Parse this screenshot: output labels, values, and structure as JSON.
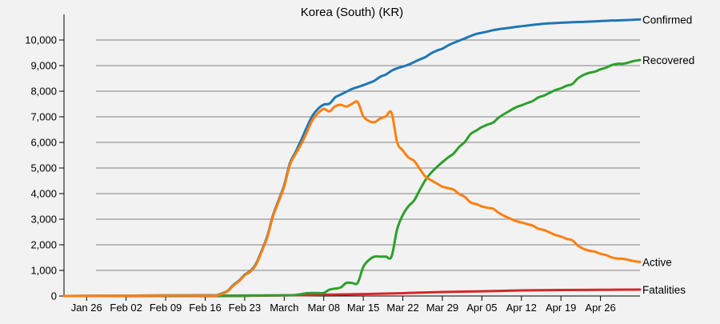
{
  "chart_data": {
    "type": "line",
    "title": "Korea (South) (KR)",
    "xlabel": "",
    "ylabel": "",
    "ylim": [
      0,
      11000
    ],
    "yticks": [
      0,
      1000,
      2000,
      3000,
      4000,
      5000,
      6000,
      7000,
      8000,
      9000,
      10000
    ],
    "ytick_labels": [
      "0",
      "1,000",
      "2,000",
      "3,000",
      "4,000",
      "5,000",
      "6,000",
      "7,000",
      "8,000",
      "9,000",
      "10,000"
    ],
    "grid": "horizontal",
    "x_start": "2020-01-22",
    "x_end": "2020-05-03",
    "xticks": [
      "2020-01-26",
      "2020-02-02",
      "2020-02-09",
      "2020-02-16",
      "2020-02-23",
      "2020-03-01",
      "2020-03-08",
      "2020-03-15",
      "2020-03-22",
      "2020-03-29",
      "2020-04-05",
      "2020-04-12",
      "2020-04-19",
      "2020-04-26"
    ],
    "xtick_labels": [
      "Jan 26",
      "Feb 02",
      "Feb 09",
      "Feb 16",
      "Feb 23",
      "March",
      "Mar 08",
      "Mar 15",
      "Mar 22",
      "Mar 29",
      "Apr 05",
      "Apr 12",
      "Apr 19",
      "Apr 26"
    ],
    "series": [
      {
        "name": "Confirmed",
        "color": "#1f77b4",
        "points": [
          [
            "2020-01-22",
            1
          ],
          [
            "2020-02-01",
            12
          ],
          [
            "2020-02-10",
            27
          ],
          [
            "2020-02-17",
            30
          ],
          [
            "2020-02-18",
            31
          ],
          [
            "2020-02-19",
            104
          ],
          [
            "2020-02-20",
            204
          ],
          [
            "2020-02-21",
            433
          ],
          [
            "2020-02-22",
            602
          ],
          [
            "2020-02-23",
            833
          ],
          [
            "2020-02-24",
            977
          ],
          [
            "2020-02-25",
            1261
          ],
          [
            "2020-02-26",
            1766
          ],
          [
            "2020-02-27",
            2337
          ],
          [
            "2020-02-28",
            3150
          ],
          [
            "2020-02-29",
            3736
          ],
          [
            "2020-03-01",
            4335
          ],
          [
            "2020-03-02",
            5186
          ],
          [
            "2020-03-03",
            5621
          ],
          [
            "2020-03-04",
            6088
          ],
          [
            "2020-03-05",
            6593
          ],
          [
            "2020-03-06",
            7041
          ],
          [
            "2020-03-07",
            7314
          ],
          [
            "2020-03-08",
            7478
          ],
          [
            "2020-03-09",
            7513
          ],
          [
            "2020-03-10",
            7755
          ],
          [
            "2020-03-11",
            7869
          ],
          [
            "2020-03-12",
            7979
          ],
          [
            "2020-03-13",
            8086
          ],
          [
            "2020-03-14",
            8162
          ],
          [
            "2020-03-15",
            8236
          ],
          [
            "2020-03-16",
            8320
          ],
          [
            "2020-03-17",
            8413
          ],
          [
            "2020-03-18",
            8565
          ],
          [
            "2020-03-19",
            8652
          ],
          [
            "2020-03-20",
            8799
          ],
          [
            "2020-03-21",
            8897
          ],
          [
            "2020-03-22",
            8961
          ],
          [
            "2020-03-23",
            9037
          ],
          [
            "2020-03-24",
            9137
          ],
          [
            "2020-03-25",
            9241
          ],
          [
            "2020-03-26",
            9332
          ],
          [
            "2020-03-27",
            9478
          ],
          [
            "2020-03-28",
            9583
          ],
          [
            "2020-03-29",
            9661
          ],
          [
            "2020-03-30",
            9786
          ],
          [
            "2020-03-31",
            9887
          ],
          [
            "2020-04-01",
            9976
          ],
          [
            "2020-04-02",
            10062
          ],
          [
            "2020-04-03",
            10156
          ],
          [
            "2020-04-04",
            10237
          ],
          [
            "2020-04-05",
            10284
          ],
          [
            "2020-04-06",
            10331
          ],
          [
            "2020-04-07",
            10384
          ],
          [
            "2020-04-08",
            10423
          ],
          [
            "2020-04-09",
            10450
          ],
          [
            "2020-04-10",
            10480
          ],
          [
            "2020-04-11",
            10512
          ],
          [
            "2020-04-12",
            10537
          ],
          [
            "2020-04-13",
            10564
          ],
          [
            "2020-04-14",
            10591
          ],
          [
            "2020-04-15",
            10613
          ],
          [
            "2020-04-16",
            10635
          ],
          [
            "2020-04-17",
            10653
          ],
          [
            "2020-04-18",
            10661
          ],
          [
            "2020-04-19",
            10674
          ],
          [
            "2020-04-20",
            10683
          ],
          [
            "2020-04-21",
            10694
          ],
          [
            "2020-04-22",
            10702
          ],
          [
            "2020-04-23",
            10708
          ],
          [
            "2020-04-24",
            10718
          ],
          [
            "2020-04-25",
            10728
          ],
          [
            "2020-04-26",
            10738
          ],
          [
            "2020-04-27",
            10752
          ],
          [
            "2020-04-28",
            10761
          ],
          [
            "2020-04-29",
            10765
          ],
          [
            "2020-04-30",
            10774
          ],
          [
            "2020-05-01",
            10780
          ],
          [
            "2020-05-02",
            10793
          ],
          [
            "2020-05-03",
            10801
          ]
        ]
      },
      {
        "name": "Recovered",
        "color": "#2ca02c",
        "points": [
          [
            "2020-01-22",
            0
          ],
          [
            "2020-02-20",
            16
          ],
          [
            "2020-03-01",
            30
          ],
          [
            "2020-03-03",
            41
          ],
          [
            "2020-03-05",
            108
          ],
          [
            "2020-03-06",
            118
          ],
          [
            "2020-03-07",
            118
          ],
          [
            "2020-03-08",
            118
          ],
          [
            "2020-03-09",
            247
          ],
          [
            "2020-03-10",
            288
          ],
          [
            "2020-03-11",
            333
          ],
          [
            "2020-03-12",
            510
          ],
          [
            "2020-03-13",
            510
          ],
          [
            "2020-03-14",
            510
          ],
          [
            "2020-03-15",
            1137
          ],
          [
            "2020-03-16",
            1407
          ],
          [
            "2020-03-17",
            1540
          ],
          [
            "2020-03-18",
            1540
          ],
          [
            "2020-03-19",
            1540
          ],
          [
            "2020-03-20",
            1540
          ],
          [
            "2020-03-21",
            2612
          ],
          [
            "2020-03-22",
            3166
          ],
          [
            "2020-03-23",
            3507
          ],
          [
            "2020-03-24",
            3730
          ],
          [
            "2020-03-25",
            4144
          ],
          [
            "2020-03-26",
            4528
          ],
          [
            "2020-03-27",
            4811
          ],
          [
            "2020-03-28",
            5033
          ],
          [
            "2020-03-29",
            5228
          ],
          [
            "2020-03-30",
            5408
          ],
          [
            "2020-03-31",
            5567
          ],
          [
            "2020-04-01",
            5828
          ],
          [
            "2020-04-02",
            6021
          ],
          [
            "2020-04-03",
            6325
          ],
          [
            "2020-04-04",
            6463
          ],
          [
            "2020-04-05",
            6598
          ],
          [
            "2020-04-06",
            6694
          ],
          [
            "2020-04-07",
            6776
          ],
          [
            "2020-04-08",
            6973
          ],
          [
            "2020-04-09",
            7117
          ],
          [
            "2020-04-10",
            7243
          ],
          [
            "2020-04-11",
            7368
          ],
          [
            "2020-04-12",
            7447
          ],
          [
            "2020-04-13",
            7534
          ],
          [
            "2020-04-14",
            7616
          ],
          [
            "2020-04-15",
            7757
          ],
          [
            "2020-04-16",
            7829
          ],
          [
            "2020-04-17",
            7937
          ],
          [
            "2020-04-18",
            8042
          ],
          [
            "2020-04-19",
            8114
          ],
          [
            "2020-04-20",
            8213
          ],
          [
            "2020-04-21",
            8277
          ],
          [
            "2020-04-22",
            8501
          ],
          [
            "2020-04-23",
            8635
          ],
          [
            "2020-04-24",
            8717
          ],
          [
            "2020-04-25",
            8764
          ],
          [
            "2020-04-26",
            8854
          ],
          [
            "2020-04-27",
            8922
          ],
          [
            "2020-04-28",
            9021
          ],
          [
            "2020-04-29",
            9072
          ],
          [
            "2020-04-30",
            9072
          ],
          [
            "2020-05-01",
            9123
          ],
          [
            "2020-05-02",
            9183
          ],
          [
            "2020-05-03",
            9218
          ]
        ]
      },
      {
        "name": "Active",
        "color": "#ff7f0e",
        "points": [
          [
            "2020-01-22",
            1
          ],
          [
            "2020-02-01",
            12
          ],
          [
            "2020-02-10",
            24
          ],
          [
            "2020-02-17",
            20
          ],
          [
            "2020-02-18",
            20
          ],
          [
            "2020-02-19",
            86
          ],
          [
            "2020-02-20",
            186
          ],
          [
            "2020-02-21",
            411
          ],
          [
            "2020-02-22",
            579
          ],
          [
            "2020-02-23",
            809
          ],
          [
            "2020-02-24",
            949
          ],
          [
            "2020-02-25",
            1227
          ],
          [
            "2020-02-26",
            1727
          ],
          [
            "2020-02-27",
            2296
          ],
          [
            "2020-02-28",
            3106
          ],
          [
            "2020-02-29",
            3686
          ],
          [
            "2020-03-01",
            4280
          ],
          [
            "2020-03-02",
            5120
          ],
          [
            "2020-03-03",
            5545
          ],
          [
            "2020-03-04",
            5928
          ],
          [
            "2020-03-05",
            6392
          ],
          [
            "2020-03-06",
            6869
          ],
          [
            "2020-03-07",
            7146
          ],
          [
            "2020-03-08",
            7308
          ],
          [
            "2020-03-09",
            7212
          ],
          [
            "2020-03-10",
            7407
          ],
          [
            "2020-03-11",
            7470
          ],
          [
            "2020-03-12",
            7402
          ],
          [
            "2020-03-13",
            7504
          ],
          [
            "2020-03-14",
            7577
          ],
          [
            "2020-03-15",
            7024
          ],
          [
            "2020-03-16",
            6838
          ],
          [
            "2020-03-17",
            6789
          ],
          [
            "2020-03-18",
            6934
          ],
          [
            "2020-03-19",
            7018
          ],
          [
            "2020-03-20",
            7157
          ],
          [
            "2020-03-21",
            6000
          ],
          [
            "2020-03-22",
            5684
          ],
          [
            "2020-03-23",
            5410
          ],
          [
            "2020-03-24",
            5281
          ],
          [
            "2020-03-25",
            4966
          ],
          [
            "2020-03-26",
            4665
          ],
          [
            "2020-03-27",
            4523
          ],
          [
            "2020-03-28",
            4398
          ],
          [
            "2020-03-29",
            4275
          ],
          [
            "2020-03-30",
            4216
          ],
          [
            "2020-03-31",
            4155
          ],
          [
            "2020-04-01",
            3979
          ],
          [
            "2020-04-02",
            3867
          ],
          [
            "2020-04-03",
            3654
          ],
          [
            "2020-04-04",
            3591
          ],
          [
            "2020-04-05",
            3500
          ],
          [
            "2020-04-06",
            3445
          ],
          [
            "2020-04-07",
            3408
          ],
          [
            "2020-04-08",
            3246
          ],
          [
            "2020-04-09",
            3125
          ],
          [
            "2020-04-10",
            3026
          ],
          [
            "2020-04-11",
            2930
          ],
          [
            "2020-04-12",
            2873
          ],
          [
            "2020-04-13",
            2808
          ],
          [
            "2020-04-14",
            2750
          ],
          [
            "2020-04-15",
            2627
          ],
          [
            "2020-04-16",
            2576
          ],
          [
            "2020-04-17",
            2484
          ],
          [
            "2020-04-18",
            2385
          ],
          [
            "2020-04-19",
            2324
          ],
          [
            "2020-04-20",
            2233
          ],
          [
            "2020-04-21",
            2179
          ],
          [
            "2020-04-22",
            1967
          ],
          [
            "2020-04-23",
            1843
          ],
          [
            "2020-04-24",
            1769
          ],
          [
            "2020-04-25",
            1731
          ],
          [
            "2020-04-26",
            1652
          ],
          [
            "2020-04-27",
            1597
          ],
          [
            "2020-04-28",
            1506
          ],
          [
            "2020-04-29",
            1460
          ],
          [
            "2020-04-30",
            1454
          ],
          [
            "2020-05-01",
            1407
          ],
          [
            "2020-05-02",
            1360
          ],
          [
            "2020-05-03",
            1332
          ]
        ]
      },
      {
        "name": "Fatalities",
        "color": "#d62728",
        "points": [
          [
            "2020-01-22",
            0
          ],
          [
            "2020-02-20",
            1
          ],
          [
            "2020-02-24",
            10
          ],
          [
            "2020-03-01",
            22
          ],
          [
            "2020-03-08",
            50
          ],
          [
            "2020-03-15",
            75
          ],
          [
            "2020-03-22",
            111
          ],
          [
            "2020-03-29",
            158
          ],
          [
            "2020-04-05",
            183
          ],
          [
            "2020-04-12",
            217
          ],
          [
            "2020-04-19",
            236
          ],
          [
            "2020-04-26",
            242
          ],
          [
            "2020-05-03",
            250
          ]
        ]
      }
    ]
  }
}
